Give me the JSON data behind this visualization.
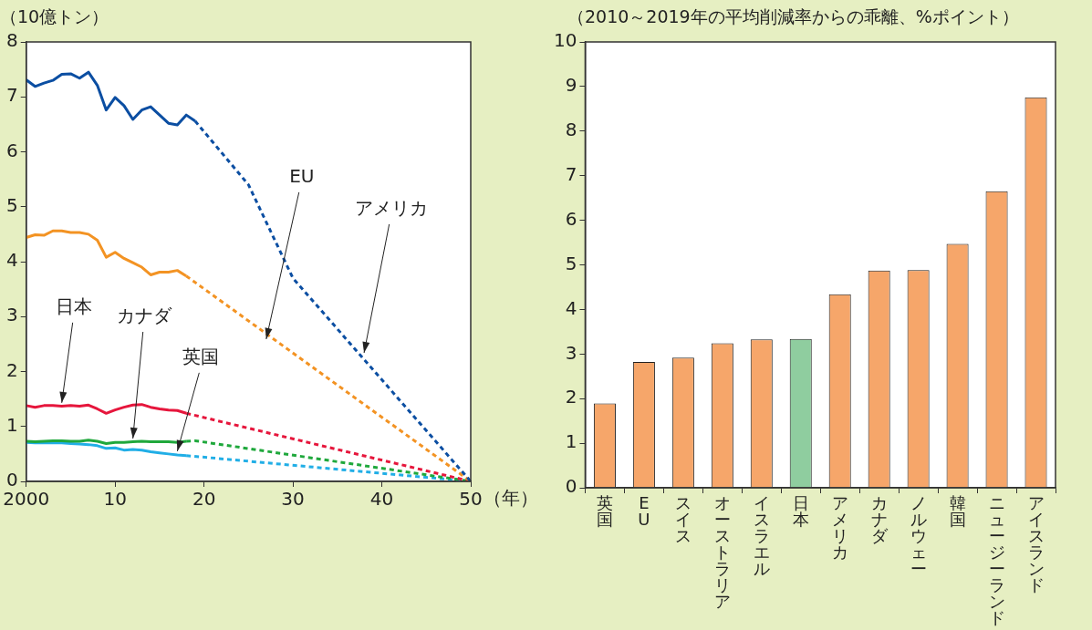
{
  "chart_data": [
    {
      "type": "line",
      "ylabel": "（10億トン）",
      "xlabel": "（年）",
      "marker": "none",
      "xlim": [
        2000,
        2050
      ],
      "xticks": [
        2000,
        {
          "value": 2010,
          "label": "10"
        },
        {
          "value": 2020,
          "label": "20"
        },
        {
          "value": 2030,
          "label": "30"
        },
        {
          "value": 2040,
          "label": "40"
        },
        {
          "value": 2050,
          "label": "50"
        }
      ],
      "ylim": [
        0,
        8
      ],
      "yticks": [
        0,
        1,
        2,
        3,
        4,
        5,
        6,
        7,
        8
      ],
      "series": [
        {
          "color": "#0b4ea2",
          "line_style": "solid",
          "x": [
            2000,
            2001,
            2002,
            2003,
            2004,
            2005,
            2006,
            2007,
            2008,
            2009,
            2010,
            2011,
            2012,
            2013,
            2014,
            2015,
            2016,
            2017,
            2018,
            2019
          ],
          "values": [
            7.31,
            7.19,
            7.25,
            7.3,
            7.41,
            7.42,
            7.34,
            7.45,
            7.21,
            6.76,
            6.99,
            6.84,
            6.59,
            6.76,
            6.82,
            6.67,
            6.52,
            6.49,
            6.67,
            6.56
          ]
        },
        {
          "color": "#0b4ea2",
          "line_style": "dashed",
          "x": [
            2019,
            2025,
            2030,
            2050
          ],
          "values": [
            6.56,
            5.4,
            3.7,
            0
          ]
        },
        {
          "color": "#f39323",
          "line_style": "solid",
          "x": [
            2000,
            2001,
            2002,
            2003,
            2004,
            2005,
            2006,
            2007,
            2008,
            2009,
            2010,
            2011,
            2012,
            2013,
            2014,
            2015,
            2016,
            2017,
            2018
          ],
          "values": [
            4.44,
            4.49,
            4.48,
            4.56,
            4.56,
            4.53,
            4.53,
            4.5,
            4.39,
            4.08,
            4.17,
            4.06,
            3.98,
            3.9,
            3.76,
            3.81,
            3.81,
            3.84,
            3.74
          ]
        },
        {
          "color": "#f39323",
          "line_style": "dashed",
          "x": [
            2018,
            2050
          ],
          "values": [
            3.74,
            0
          ]
        },
        {
          "color": "#e6163c",
          "line_style": "solid",
          "x": [
            2000,
            2001,
            2002,
            2003,
            2004,
            2005,
            2006,
            2007,
            2008,
            2009,
            2010,
            2011,
            2012,
            2013,
            2014,
            2015,
            2016,
            2017,
            2018
          ],
          "values": [
            1.38,
            1.35,
            1.38,
            1.38,
            1.37,
            1.38,
            1.37,
            1.39,
            1.32,
            1.24,
            1.3,
            1.35,
            1.39,
            1.4,
            1.35,
            1.32,
            1.3,
            1.29,
            1.24
          ]
        },
        {
          "color": "#e6163c",
          "line_style": "dashed",
          "x": [
            2018,
            2050
          ],
          "values": [
            1.24,
            0
          ]
        },
        {
          "color": "#1fa83c",
          "line_style": "solid",
          "x": [
            2000,
            2001,
            2002,
            2003,
            2004,
            2005,
            2006,
            2007,
            2008,
            2009,
            2010,
            2011,
            2012,
            2013,
            2014,
            2015,
            2016,
            2017,
            2018
          ],
          "values": [
            0.73,
            0.72,
            0.73,
            0.74,
            0.74,
            0.73,
            0.73,
            0.75,
            0.73,
            0.69,
            0.71,
            0.71,
            0.72,
            0.73,
            0.72,
            0.72,
            0.72,
            0.71,
            0.73
          ]
        },
        {
          "color": "#1fa83c",
          "line_style": "dashed",
          "x": [
            2018,
            2019,
            2050
          ],
          "values": [
            0.73,
            0.74,
            0
          ]
        },
        {
          "color": "#21aee6",
          "line_style": "solid",
          "x": [
            2000,
            2001,
            2002,
            2003,
            2004,
            2005,
            2006,
            2007,
            2008,
            2009,
            2010,
            2011,
            2012,
            2013,
            2014,
            2015,
            2016,
            2017,
            2018
          ],
          "values": [
            0.71,
            0.7,
            0.7,
            0.7,
            0.7,
            0.69,
            0.68,
            0.67,
            0.65,
            0.6,
            0.61,
            0.57,
            0.58,
            0.57,
            0.54,
            0.52,
            0.5,
            0.48,
            0.47
          ]
        },
        {
          "color": "#21aee6",
          "line_style": "dashed",
          "x": [
            2018,
            2050
          ],
          "values": [
            0.47,
            0
          ]
        }
      ],
      "annotations": [
        {
          "text": "EU",
          "x": 2027,
          "y": 2.59
        },
        {
          "text": "アメリカ",
          "x": 2038,
          "y": 2.34
        },
        {
          "text": "日本",
          "x": 2004,
          "y": 1.43
        },
        {
          "text": "カナダ",
          "x": 2012,
          "y": 0.78
        },
        {
          "text": "英国",
          "x": 2017,
          "y": 0.55
        }
      ]
    },
    {
      "type": "bar",
      "ylabel": "（2010～2019年の平均削減率からの乖離、%ポイント）",
      "categories": [
        "英国",
        "EU",
        "スイス",
        "オーストラリア",
        "イスラエル",
        "日本",
        "アメリカ",
        "カナダ",
        "ノルウェー",
        "韓国",
        "ニュージーランド",
        "アイスランド"
      ],
      "values": [
        1.89,
        2.82,
        2.92,
        3.24,
        3.33,
        3.34,
        4.34,
        4.87,
        4.88,
        5.47,
        6.65,
        8.76
      ],
      "colors": [
        "#f6a66a",
        "#f6a66a",
        "#f6a66a",
        "#f6a66a",
        "#f6a66a",
        "#8fcd9f",
        "#f6a66a",
        "#f6a66a",
        "#f6a66a",
        "#f6a66a",
        "#f6a66a",
        "#f6a66a"
      ],
      "ylim": [
        0,
        10
      ],
      "yticks": [
        0,
        1,
        2,
        3,
        4,
        5,
        6,
        7,
        8,
        9,
        10
      ]
    }
  ]
}
